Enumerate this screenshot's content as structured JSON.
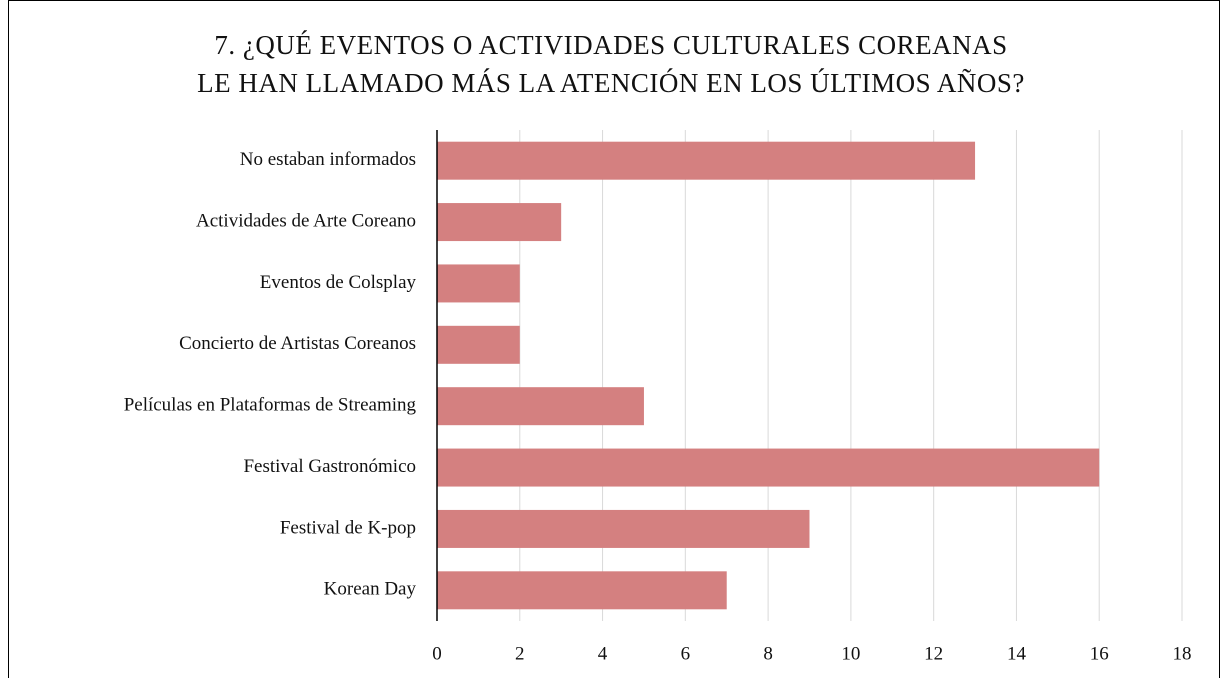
{
  "chart_data": {
    "type": "bar",
    "orientation": "horizontal",
    "title": [
      "7.  ¿QUÉ EVENTOS O ACTIVIDADES CULTURALES COREANAS",
      "LE HAN LLAMADO MÁS LA ATENCIÓN EN LOS ÚLTIMOS AÑOS?"
    ],
    "categories": [
      "No estaban informados",
      "Actividades de Arte Coreano",
      "Eventos de Colsplay",
      "Concierto de Artistas Coreanos",
      "Películas en Plataformas de Streaming",
      "Festival Gastronómico",
      "Festival de K-pop",
      "Korean Day"
    ],
    "values": [
      13,
      3,
      2,
      2,
      5,
      16,
      9,
      7
    ],
    "color": "#d48080",
    "xlim": [
      0,
      18
    ],
    "xticks": [
      0,
      2,
      4,
      6,
      8,
      10,
      12,
      14,
      16,
      18
    ],
    "grid": true
  }
}
